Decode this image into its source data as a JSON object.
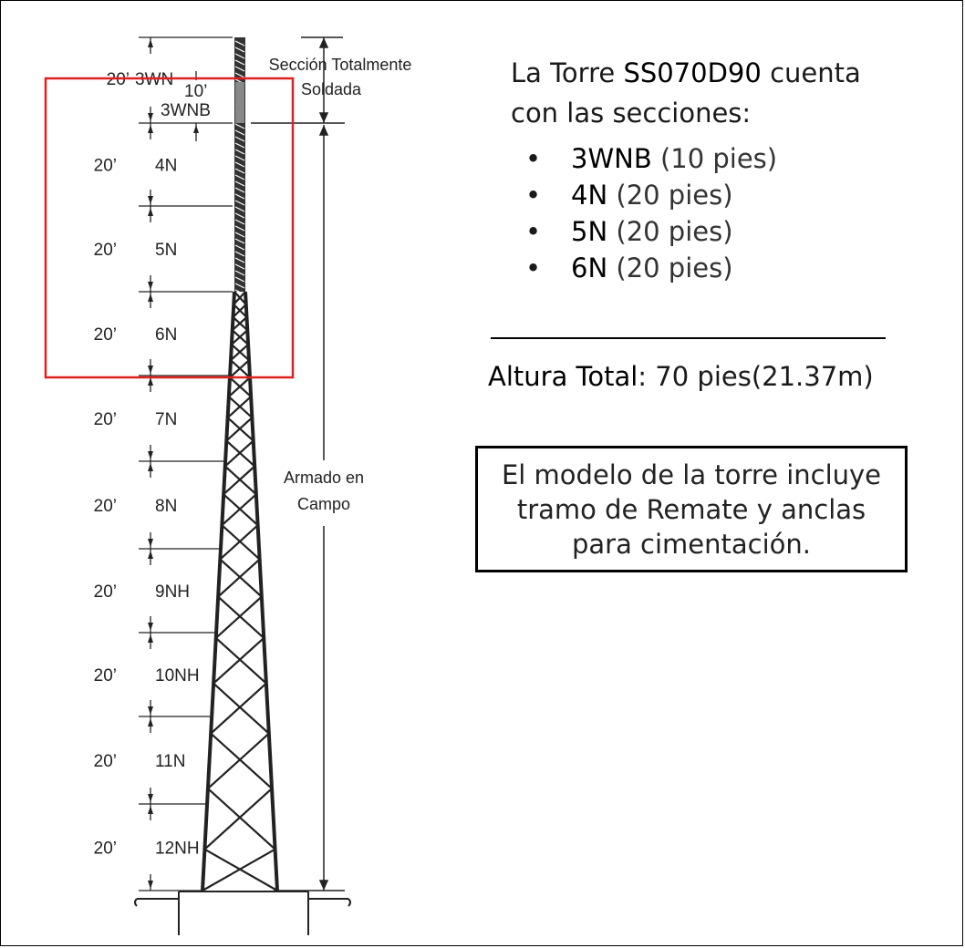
{
  "diagram": {
    "sections": [
      {
        "length": "20’",
        "name": "3WN"
      },
      {
        "length": "20’",
        "name": "4N"
      },
      {
        "length": "20’",
        "name": "5N"
      },
      {
        "length": "20’",
        "name": "6N"
      },
      {
        "length": "20’",
        "name": "7N"
      },
      {
        "length": "20’",
        "name": "8N"
      },
      {
        "length": "20’",
        "name": "9NH"
      },
      {
        "length": "20’",
        "name": "10NH"
      },
      {
        "length": "20’",
        "name": "11N"
      },
      {
        "length": "20’",
        "name": "12NH"
      }
    ],
    "top_piece": {
      "length": "10’",
      "name": "3WNB"
    },
    "welded_label": [
      "Sección Totalmente",
      "Soldada"
    ],
    "field_label": [
      "Armado en",
      "Campo"
    ],
    "highlight_color": "#e02020"
  },
  "panel": {
    "intro_prefix": "La Torre",
    "model": "SS070D90",
    "intro_suffix": "cuenta",
    "intro_line2": "con las secciones:",
    "sections": [
      {
        "code": "3WNB",
        "length": "(10 pies)"
      },
      {
        "code": "4N",
        "length": "(20 pies)"
      },
      {
        "code": "5N",
        "length": "(20 pies)"
      },
      {
        "code": "6N",
        "length": "(20 pies)"
      }
    ],
    "total_label": "Altura Total",
    "total_value": ": 70 pies(21.37m)",
    "note_lines": [
      "El modelo  de la torre incluye",
      "tramo de Remate y anclas",
      "para cimentación."
    ]
  }
}
